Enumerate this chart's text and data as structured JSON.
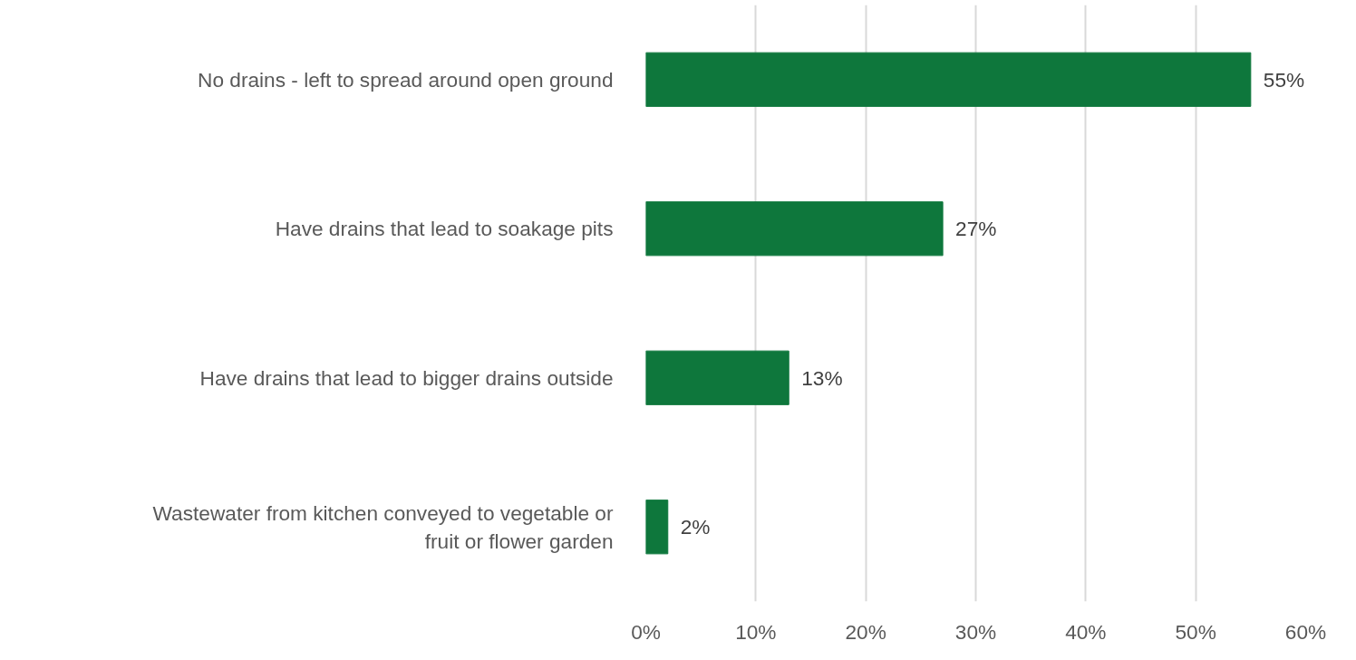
{
  "chart_data": {
    "type": "bar",
    "orientation": "horizontal",
    "categories": [
      "No drains - left to spread around open ground",
      "Have drains that lead to soakage pits",
      "Have drains that lead to bigger drains outside",
      "Wastewater from kitchen conveyed to vegetable or fruit or flower garden"
    ],
    "values": [
      55,
      27,
      13,
      2
    ],
    "value_labels": [
      "55%",
      "27%",
      "13%",
      "2%"
    ],
    "color": "#0e773c",
    "xlim": [
      0,
      60
    ],
    "xticks": [
      {
        "value": 0,
        "label": "0%"
      },
      {
        "value": 10,
        "label": "10%"
      },
      {
        "value": 20,
        "label": "20%"
      },
      {
        "value": 30,
        "label": "30%"
      },
      {
        "value": 40,
        "label": "40%"
      },
      {
        "value": 50,
        "label": "50%"
      },
      {
        "value": 60,
        "label": "60%"
      }
    ],
    "grid": "x"
  }
}
